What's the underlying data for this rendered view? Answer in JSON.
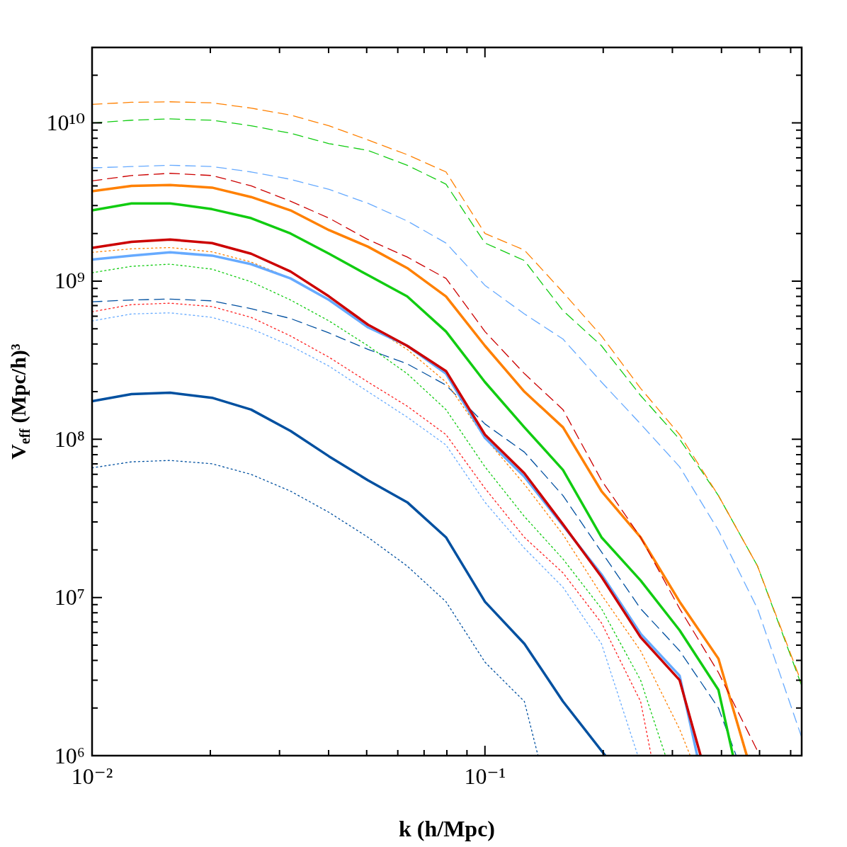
{
  "chart_data": {
    "type": "line",
    "xlabel": "k (h/Mpc)",
    "ylabel": "V$_{eff}$ (Mpc/h)³",
    "log": "xy",
    "xlim": [
      0.01,
      0.64
    ],
    "ylim": [
      1000000,
      30000000000
    ],
    "xticks": [
      {
        "value": 0.01,
        "label": "10⁻²"
      },
      {
        "value": 0.02,
        "label": null
      },
      {
        "value": 0.03,
        "label": null
      },
      {
        "value": 0.04,
        "label": null
      },
      {
        "value": 0.05,
        "label": null
      },
      {
        "value": 0.06,
        "label": null
      },
      {
        "value": 0.07,
        "label": null
      },
      {
        "value": 0.08,
        "label": null
      },
      {
        "value": 0.09,
        "label": null
      },
      {
        "value": 0.1,
        "label": "10⁻¹"
      },
      {
        "value": 0.2,
        "label": null
      },
      {
        "value": 0.3,
        "label": null
      },
      {
        "value": 0.4,
        "label": null
      },
      {
        "value": 0.5,
        "label": null
      },
      {
        "value": 0.6,
        "label": null
      }
    ],
    "yticks": [
      {
        "value": 1000000,
        "label": "10⁶"
      },
      {
        "value": 2000000,
        "label": null
      },
      {
        "value": 3000000,
        "label": null
      },
      {
        "value": 4000000,
        "label": null
      },
      {
        "value": 5000000,
        "label": null
      },
      {
        "value": 6000000,
        "label": null
      },
      {
        "value": 7000000,
        "label": null
      },
      {
        "value": 8000000,
        "label": null
      },
      {
        "value": 9000000,
        "label": null
      },
      {
        "value": 10000000,
        "label": "10⁷"
      },
      {
        "value": 20000000,
        "label": null
      },
      {
        "value": 30000000,
        "label": null
      },
      {
        "value": 40000000,
        "label": null
      },
      {
        "value": 50000000,
        "label": null
      },
      {
        "value": 60000000,
        "label": null
      },
      {
        "value": 70000000,
        "label": null
      },
      {
        "value": 80000000,
        "label": null
      },
      {
        "value": 90000000,
        "label": null
      },
      {
        "value": 100000000,
        "label": "10⁸"
      },
      {
        "value": 200000000,
        "label": null
      },
      {
        "value": 300000000,
        "label": null
      },
      {
        "value": 400000000,
        "label": null
      },
      {
        "value": 500000000,
        "label": null
      },
      {
        "value": 600000000,
        "label": null
      },
      {
        "value": 700000000,
        "label": null
      },
      {
        "value": 800000000,
        "label": null
      },
      {
        "value": 900000000,
        "label": null
      },
      {
        "value": 1000000000,
        "label": "10⁹"
      },
      {
        "value": 2000000000,
        "label": null
      },
      {
        "value": 3000000000,
        "label": null
      },
      {
        "value": 4000000000,
        "label": null
      },
      {
        "value": 5000000000,
        "label": null
      },
      {
        "value": 6000000000,
        "label": null
      },
      {
        "value": 7000000000,
        "label": null
      },
      {
        "value": 8000000000,
        "label": null
      },
      {
        "value": 9000000000,
        "label": null
      },
      {
        "value": 10000000000,
        "label": "10¹⁰"
      },
      {
        "value": 20000000000,
        "label": null
      },
      {
        "value": 30000000000,
        "label": null
      }
    ],
    "series": [
      {
        "color": "#ff8000",
        "line_style": "dashed",
        "x": [
          0.01,
          0.0126,
          0.0158,
          0.0202,
          0.0254,
          0.032,
          0.0401,
          0.0504,
          0.0634,
          0.0796,
          0.1,
          0.126,
          0.158,
          0.198,
          0.249,
          0.313,
          0.393,
          0.494,
          0.639
        ],
        "values": [
          13100000000.0,
          13500000000.0,
          13600000000.0,
          13400000000.0,
          12400000000.0,
          11200000000.0,
          9600000000.0,
          7800000000.0,
          6300000000.0,
          4900000000.0,
          2000000000.0,
          1570000000.0,
          850000000.0,
          450000000.0,
          210000000.0,
          107000000.0,
          44000000.0,
          15800000.0,
          2900000.0
        ]
      },
      {
        "color": "#11cc11",
        "line_style": "dashed",
        "x": [
          0.01,
          0.0126,
          0.0158,
          0.0202,
          0.0254,
          0.032,
          0.0401,
          0.0504,
          0.0634,
          0.0796,
          0.1,
          0.126,
          0.158,
          0.198,
          0.249,
          0.313,
          0.393,
          0.494,
          0.639
        ],
        "values": [
          10000000000.0,
          10400000000.0,
          10600000000.0,
          10400000000.0,
          9600000000.0,
          8600000000.0,
          7400000000.0,
          6700000000.0,
          5400000000.0,
          4100000000.0,
          1740000000.0,
          1350000000.0,
          650000000.0,
          390000000.0,
          189000000.0,
          100000000.0,
          44000000.0,
          15800000.0,
          2800000.0
        ]
      },
      {
        "color": "#66aaff",
        "line_style": "dashed",
        "x": [
          0.01,
          0.0126,
          0.0158,
          0.0202,
          0.0254,
          0.032,
          0.0401,
          0.0504,
          0.0634,
          0.0796,
          0.1,
          0.126,
          0.158,
          0.198,
          0.249,
          0.313,
          0.393,
          0.494,
          0.639
        ],
        "values": [
          5200000000.0,
          5300000000.0,
          5400000000.0,
          5300000000.0,
          4900000000.0,
          4400000000.0,
          3800000000.0,
          3100000000.0,
          2400000000.0,
          1740000000.0,
          940000000.0,
          620000000.0,
          430000000.0,
          230000000.0,
          125000000.0,
          67000000.0,
          26500000.0,
          8500000.0,
          1320000.0
        ]
      },
      {
        "color": "#cc0000",
        "line_style": "dashed",
        "x": [
          0.01,
          0.0126,
          0.0158,
          0.0202,
          0.0254,
          0.032,
          0.0401,
          0.0504,
          0.0634,
          0.0796,
          0.1,
          0.126,
          0.158,
          0.198,
          0.249,
          0.313,
          0.393,
          0.494
        ],
        "values": [
          4300000000.0,
          4650000000.0,
          4800000000.0,
          4650000000.0,
          4000000000.0,
          3200000000.0,
          2500000000.0,
          1830000000.0,
          1420000000.0,
          1040000000.0,
          480000000.0,
          260000000.0,
          154000000.0,
          55000000.0,
          24000000.0,
          8500000.0,
          3350000.0,
          1070000.0
        ]
      },
      {
        "color": "#ff8000",
        "line_style": "solid",
        "x": [
          0.01,
          0.0126,
          0.0158,
          0.0202,
          0.0254,
          0.032,
          0.0401,
          0.0504,
          0.0634,
          0.0796,
          0.1,
          0.126,
          0.158,
          0.198,
          0.249,
          0.313,
          0.393,
          0.464
        ],
        "values": [
          3700000000.0,
          4000000000.0,
          4050000000.0,
          3900000000.0,
          3400000000.0,
          2800000000.0,
          2100000000.0,
          1650000000.0,
          1210000000.0,
          800000000.0,
          390000000.0,
          200000000.0,
          119000000.0,
          47000000.0,
          24000000.0,
          9400000.0,
          4100000.0,
          1000000.0
        ]
      },
      {
        "color": "#11cc11",
        "line_style": "solid",
        "x": [
          0.01,
          0.0126,
          0.0158,
          0.0202,
          0.0254,
          0.032,
          0.0401,
          0.0504,
          0.0634,
          0.0796,
          0.1,
          0.126,
          0.158,
          0.198,
          0.249,
          0.313,
          0.393,
          0.428
        ],
        "values": [
          2800000000.0,
          3100000000.0,
          3100000000.0,
          2850000000.0,
          2500000000.0,
          2000000000.0,
          1490000000.0,
          1090000000.0,
          800000000.0,
          480000000.0,
          230000000.0,
          119000000.0,
          64000000.0,
          24000000.0,
          12800000.0,
          6200000.0,
          2600000.0,
          1000000.0
        ]
      },
      {
        "color": "#cc0000",
        "line_style": "solid",
        "x": [
          0.01,
          0.0126,
          0.0158,
          0.0202,
          0.0254,
          0.032,
          0.0401,
          0.0504,
          0.0634,
          0.0796,
          0.1,
          0.126,
          0.158,
          0.198,
          0.249,
          0.313,
          0.354
        ],
        "values": [
          1620000000.0,
          1770000000.0,
          1830000000.0,
          1740000000.0,
          1490000000.0,
          1150000000.0,
          800000000.0,
          530000000.0,
          390000000.0,
          270000000.0,
          107000000.0,
          61000000.0,
          29000000.0,
          13500000.0,
          5600000.0,
          3000000.0,
          1000000.0
        ]
      },
      {
        "color": "#66aaff",
        "line_style": "solid",
        "x": [
          0.01,
          0.0126,
          0.0158,
          0.0202,
          0.0254,
          0.032,
          0.0401,
          0.0504,
          0.0634,
          0.0796,
          0.1,
          0.126,
          0.158,
          0.198,
          0.249,
          0.313,
          0.347
        ],
        "values": [
          1370000000.0,
          1450000000.0,
          1520000000.0,
          1450000000.0,
          1280000000.0,
          1040000000.0,
          760000000.0,
          510000000.0,
          390000000.0,
          260000000.0,
          102000000.0,
          58000000.0,
          28500000.0,
          14000000.0,
          5900000.0,
          3200000.0,
          1000000.0
        ]
      },
      {
        "color": "#ff8000",
        "line_style": "dotted",
        "x": [
          0.01,
          0.0126,
          0.0158,
          0.0202,
          0.0254,
          0.032,
          0.0401,
          0.0504,
          0.0634,
          0.0796,
          0.1,
          0.126,
          0.158,
          0.198,
          0.249,
          0.313,
          0.333
        ],
        "values": [
          1520000000.0,
          1600000000.0,
          1630000000.0,
          1530000000.0,
          1320000000.0,
          1040000000.0,
          760000000.0,
          530000000.0,
          370000000.0,
          230000000.0,
          102000000.0,
          52000000.0,
          25000000.0,
          10400000.0,
          4600000.0,
          1470000.0,
          1000000.0
        ]
      },
      {
        "color": "#11cc11",
        "line_style": "dotted",
        "x": [
          0.01,
          0.0126,
          0.0158,
          0.0202,
          0.0254,
          0.032,
          0.0401,
          0.0504,
          0.0634,
          0.0796,
          0.1,
          0.126,
          0.158,
          0.198,
          0.249,
          0.288
        ],
        "values": [
          1130000000.0,
          1240000000.0,
          1280000000.0,
          1190000000.0,
          990000000.0,
          760000000.0,
          560000000.0,
          390000000.0,
          260000000.0,
          154000000.0,
          67000000.0,
          32500000.0,
          17500000.0,
          8500000.0,
          3000000.0,
          1000000.0
        ]
      },
      {
        "color": "#ff2020",
        "line_style": "dotted",
        "x": [
          0.01,
          0.0126,
          0.0158,
          0.0202,
          0.0254,
          0.032,
          0.0401,
          0.0504,
          0.0634,
          0.0796,
          0.1,
          0.126,
          0.158,
          0.198,
          0.249,
          0.265
        ],
        "values": [
          640000000.0,
          710000000.0,
          725000000.0,
          690000000.0,
          590000000.0,
          450000000.0,
          330000000.0,
          230000000.0,
          162000000.0,
          107000000.0,
          49000000.0,
          24000000.0,
          14300000.0,
          6900000.0,
          2200000.0,
          1000000.0
        ]
      },
      {
        "color": "#66aaff",
        "line_style": "dotted",
        "x": [
          0.01,
          0.0126,
          0.0158,
          0.0202,
          0.0254,
          0.032,
          0.0401,
          0.0504,
          0.0634,
          0.0796,
          0.1,
          0.126,
          0.158,
          0.198,
          0.245
        ],
        "values": [
          560000000.0,
          620000000.0,
          630000000.0,
          590000000.0,
          500000000.0,
          390000000.0,
          290000000.0,
          200000000.0,
          138000000.0,
          92000000.0,
          40000000.0,
          20500000.0,
          11600000.0,
          5100000.0,
          1000000.0
        ]
      },
      {
        "color": "#0050a0",
        "line_style": "dashed",
        "x": [
          0.01,
          0.0126,
          0.0158,
          0.0202,
          0.0254,
          0.032,
          0.0401,
          0.0504,
          0.0634,
          0.0796,
          0.1,
          0.126,
          0.158,
          0.198,
          0.249,
          0.313,
          0.393,
          0.436
        ],
        "values": [
          740000000.0,
          760000000.0,
          770000000.0,
          750000000.0,
          670000000.0,
          580000000.0,
          470000000.0,
          370000000.0,
          300000000.0,
          220000000.0,
          125000000.0,
          83000000.0,
          44000000.0,
          19400000.0,
          8500000.0,
          4600000.0,
          2000000.0,
          1000000.0
        ]
      },
      {
        "color": "#0050a0",
        "line_style": "solid",
        "x": [
          0.01,
          0.0126,
          0.0158,
          0.0202,
          0.0254,
          0.032,
          0.0401,
          0.0504,
          0.0634,
          0.0796,
          0.1,
          0.126,
          0.158,
          0.2025
        ],
        "values": [
          174000000.0,
          193000000.0,
          197000000.0,
          183000000.0,
          154000000.0,
          113000000.0,
          78000000.0,
          55000000.0,
          40000000.0,
          24000000.0,
          9400000.0,
          5100000.0,
          2200000.0,
          1000000.0
        ]
      },
      {
        "color": "#0050a0",
        "line_style": "dotted",
        "x": [
          0.01,
          0.0126,
          0.0158,
          0.0202,
          0.0254,
          0.032,
          0.0401,
          0.0504,
          0.0634,
          0.0796,
          0.1,
          0.126,
          0.1365
        ],
        "values": [
          66000000.0,
          72000000.0,
          73500000.0,
          70000000.0,
          60000000.0,
          47000000.0,
          34500000.0,
          24000000.0,
          15800000.0,
          9400000.0,
          3900000.0,
          2200000.0,
          1000000.0
        ]
      }
    ]
  }
}
